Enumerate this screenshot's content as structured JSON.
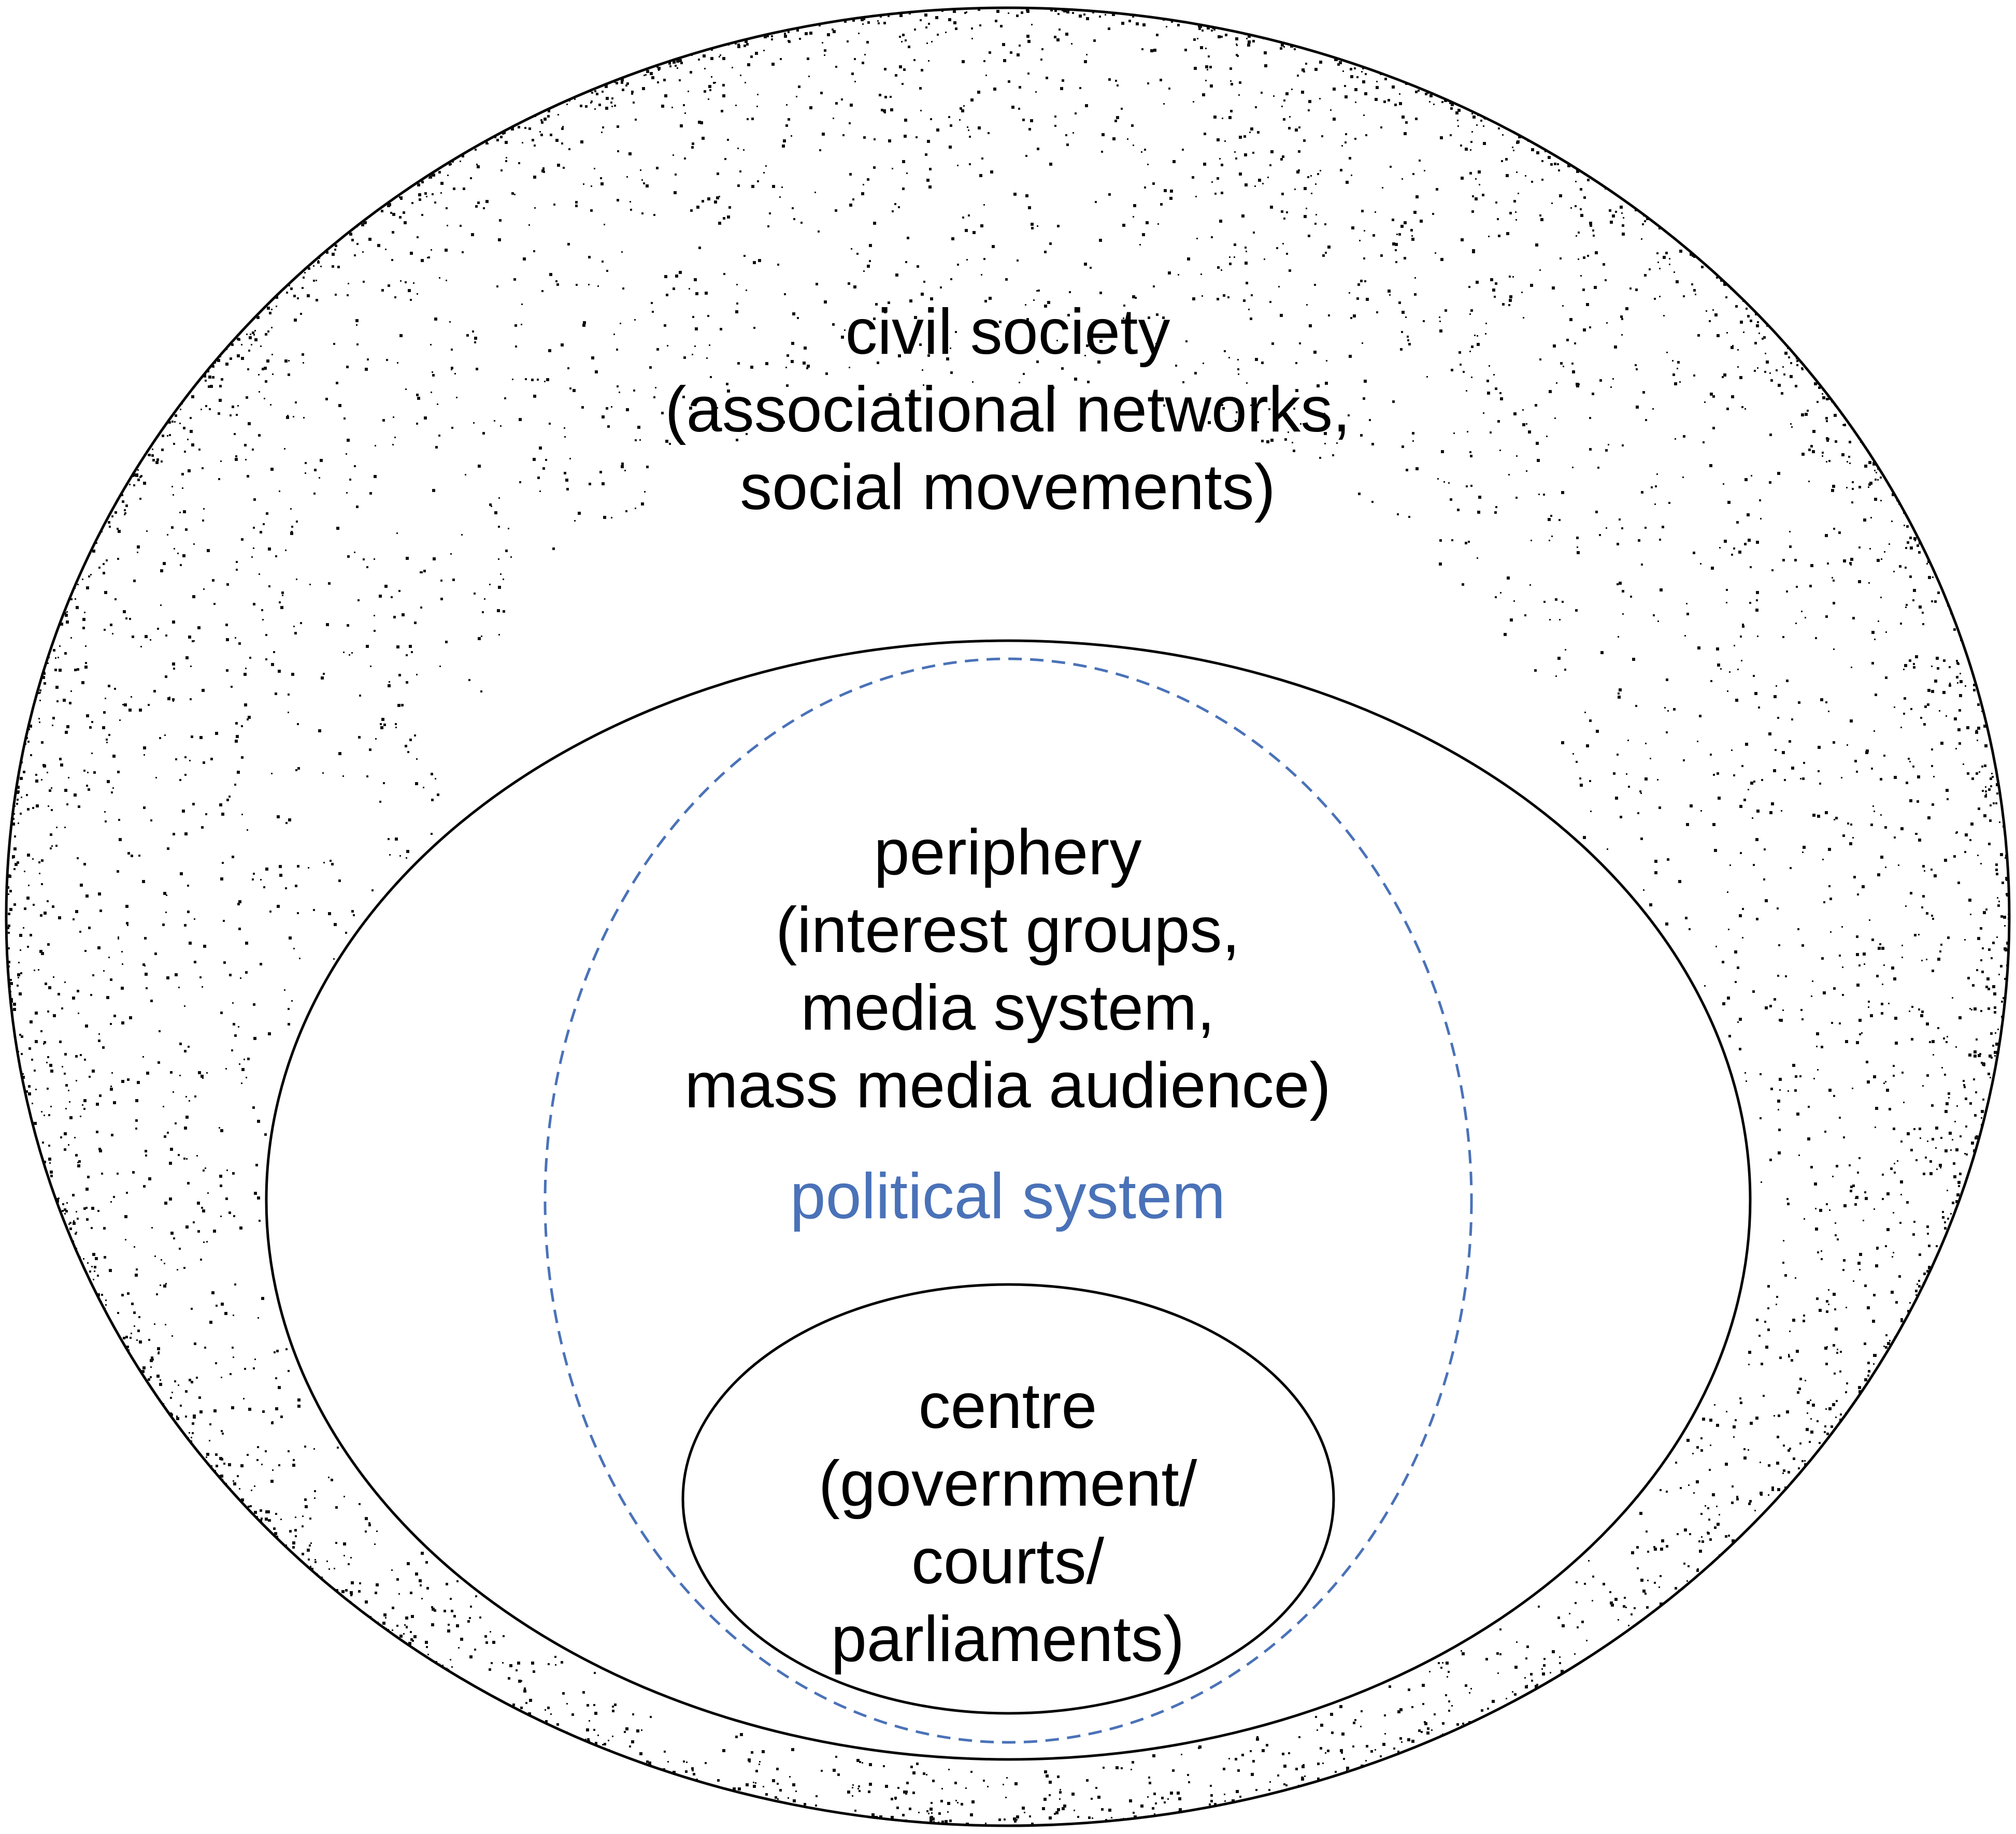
{
  "diagram": {
    "civil_society": {
      "title": "civil society",
      "lines": [
        "(associational networks,",
        "social movements)"
      ]
    },
    "periphery": {
      "title": "periphery",
      "lines": [
        "(interest groups,",
        "media system,",
        "mass media audience)"
      ]
    },
    "political_system": {
      "label": "political system",
      "color": "#4a72b8"
    },
    "centre": {
      "title": "centre",
      "lines": [
        "(government/",
        "courts/",
        "parliaments)"
      ]
    }
  },
  "colors": {
    "outline": "#000000",
    "stipple": "#111111",
    "background": "#ffffff"
  }
}
